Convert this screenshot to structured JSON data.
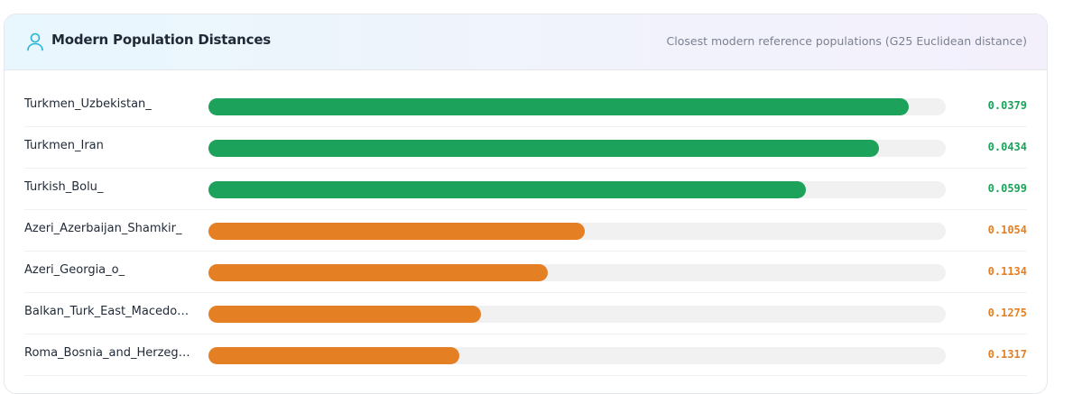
{
  "header": {
    "title": "Modern Population Distances",
    "subtitle": "Closest modern reference populations (G25 Euclidean distance)",
    "icon": "user-icon"
  },
  "colors": {
    "close": "#1ca25b",
    "medium": "#e57f24",
    "track": "#f1f1f2"
  },
  "rows": [
    {
      "label": "Turkmen_Uzbekistan_",
      "value": "0.0379",
      "fill": 0.95,
      "tier": "close"
    },
    {
      "label": "Turkmen_Iran",
      "value": "0.0434",
      "fill": 0.91,
      "tier": "close"
    },
    {
      "label": "Turkish_Bolu_",
      "value": "0.0599",
      "fill": 0.81,
      "tier": "close"
    },
    {
      "label": "Azeri_Azerbaijan_Shamkir_",
      "value": "0.1054",
      "fill": 0.51,
      "tier": "medium"
    },
    {
      "label": "Azeri_Georgia_o_",
      "value": "0.1134",
      "fill": 0.46,
      "tier": "medium"
    },
    {
      "label": "Balkan_Turk_East_Macedonia",
      "value": "0.1275",
      "fill": 0.37,
      "tier": "medium"
    },
    {
      "label": "Roma_Bosnia_and_Herzegovina",
      "value": "0.1317",
      "fill": 0.34,
      "tier": "medium"
    }
  ]
}
